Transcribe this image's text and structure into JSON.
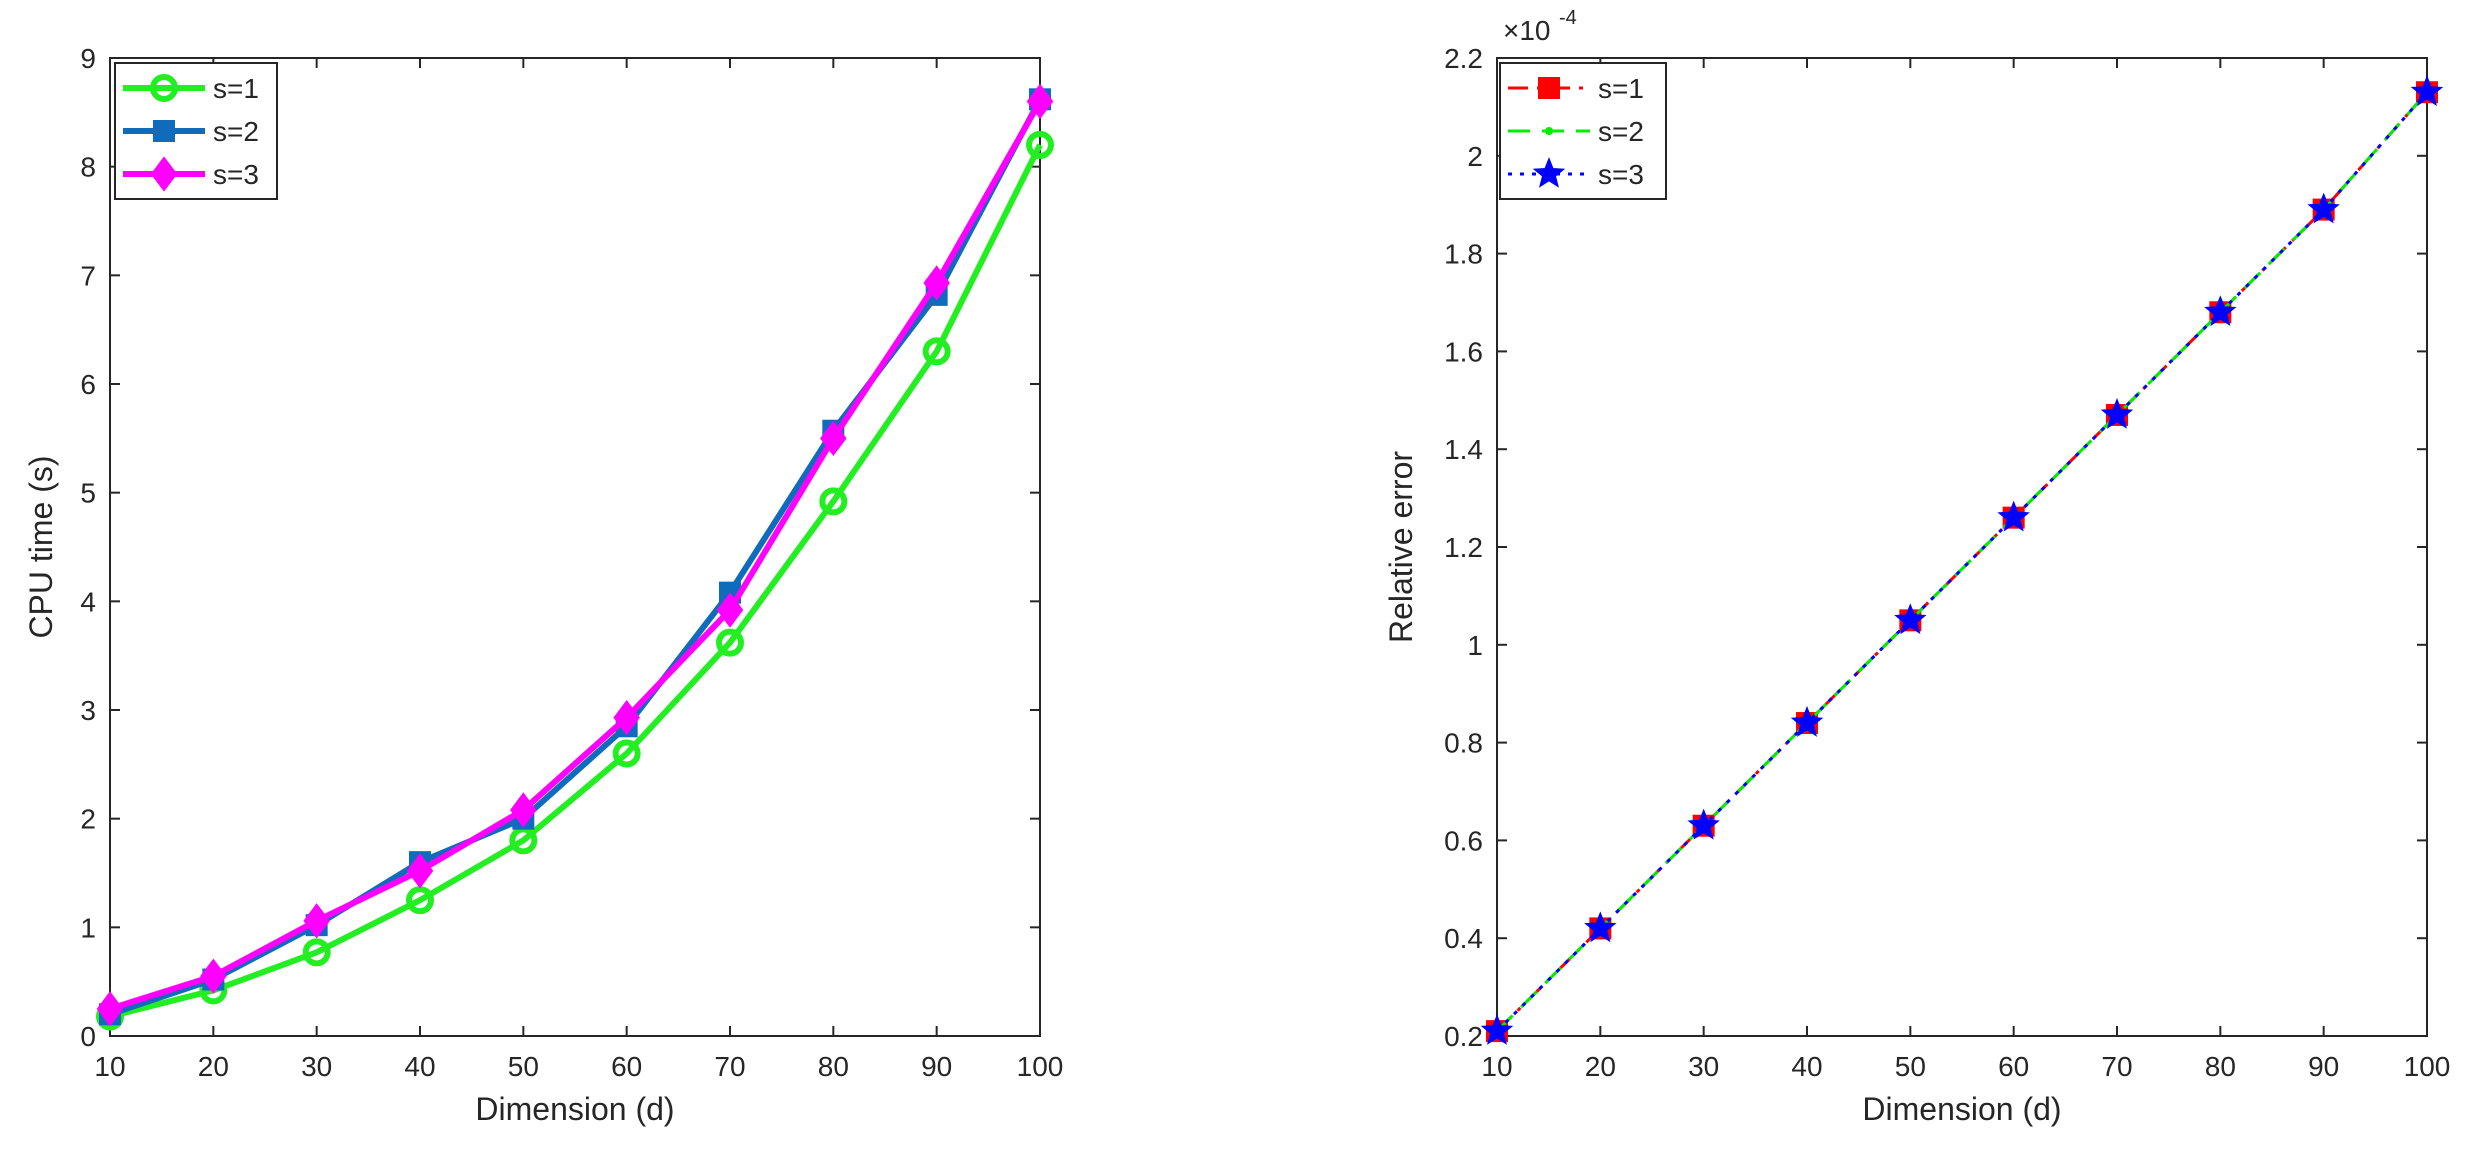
{
  "chart_data": [
    {
      "type": "line",
      "title": "",
      "xlabel": "Dimension (d)",
      "ylabel": "CPU time (s)",
      "xlim": [
        10,
        100
      ],
      "ylim": [
        0,
        9
      ],
      "xticks": [
        "10",
        "20",
        "30",
        "40",
        "50",
        "60",
        "70",
        "80",
        "90",
        "100"
      ],
      "yticks": [
        "0",
        "1",
        "2",
        "3",
        "4",
        "5",
        "6",
        "7",
        "8",
        "9"
      ],
      "grid": false,
      "legend_position": "top-left",
      "x": [
        10,
        20,
        30,
        40,
        50,
        60,
        70,
        80,
        90,
        100
      ],
      "series": [
        {
          "name": "s=1",
          "color": "#22ee22",
          "marker": "circle",
          "line": "solid",
          "values": [
            0.18,
            0.42,
            0.77,
            1.25,
            1.8,
            2.6,
            3.62,
            4.92,
            6.3,
            8.2
          ]
        },
        {
          "name": "s=2",
          "color": "#0f6cbd",
          "marker": "square",
          "line": "solid",
          "values": [
            0.2,
            0.52,
            1.02,
            1.6,
            2.0,
            2.85,
            4.08,
            5.57,
            6.82,
            8.62
          ]
        },
        {
          "name": "s=3",
          "color": "#ff00ff",
          "marker": "diamond",
          "line": "solid",
          "values": [
            0.25,
            0.55,
            1.06,
            1.52,
            2.08,
            2.93,
            3.92,
            5.5,
            6.93,
            8.6
          ]
        }
      ]
    },
    {
      "type": "line",
      "title": "",
      "xlabel": "Dimension (d)",
      "ylabel": "Relative error",
      "y_exponent": "×10",
      "y_exponent_power": "-4",
      "xlim": [
        10,
        100
      ],
      "ylim": [
        0.2,
        2.2
      ],
      "xticks": [
        "10",
        "20",
        "30",
        "40",
        "50",
        "60",
        "70",
        "80",
        "90",
        "100"
      ],
      "yticks": [
        "0.2",
        "0.4",
        "0.6",
        "0.8",
        "1",
        "1.2",
        "1.4",
        "1.6",
        "1.8",
        "2",
        "2.2"
      ],
      "grid": false,
      "legend_position": "top-left",
      "x": [
        10,
        20,
        30,
        40,
        50,
        60,
        70,
        80,
        90,
        100
      ],
      "series": [
        {
          "name": "s=1",
          "color": "#ff0000",
          "marker": "square",
          "line": "dashdot",
          "values": [
            0.21,
            0.42,
            0.63,
            0.84,
            1.05,
            1.26,
            1.47,
            1.68,
            1.89,
            2.13
          ]
        },
        {
          "name": "s=2",
          "color": "#00ee00",
          "marker": "point",
          "line": "dashed",
          "values": [
            0.21,
            0.42,
            0.63,
            0.84,
            1.05,
            1.26,
            1.47,
            1.68,
            1.89,
            2.13
          ]
        },
        {
          "name": "s=3",
          "color": "#0000ff",
          "marker": "star",
          "line": "dotted",
          "values": [
            0.21,
            0.42,
            0.63,
            0.84,
            1.05,
            1.26,
            1.47,
            1.68,
            1.89,
            2.13
          ]
        }
      ]
    }
  ]
}
